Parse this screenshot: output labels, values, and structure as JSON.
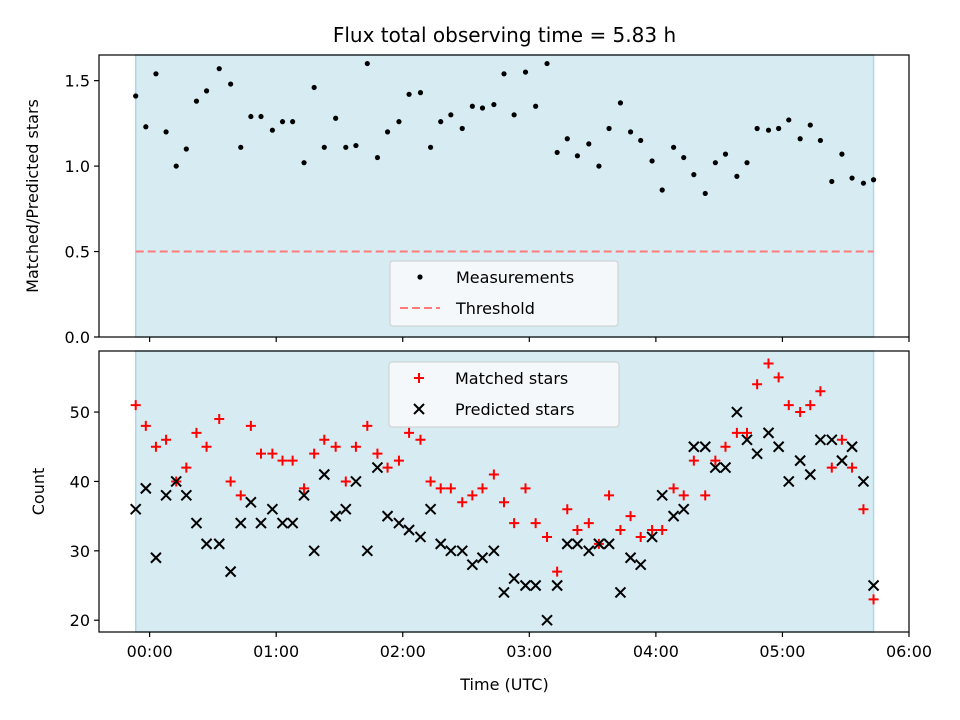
{
  "chart_data": {
    "type": "scatter",
    "title": "Flux total observing time = 5.83 h",
    "xlabel": "Time (UTC)",
    "xlim_hours": [
      -0.4,
      6.0
    ],
    "xticks": [
      {
        "value": 0,
        "label": "00:00"
      },
      {
        "value": 1,
        "label": "01:00"
      },
      {
        "value": 2,
        "label": "02:00"
      },
      {
        "value": 3,
        "label": "03:00"
      },
      {
        "value": 4,
        "label": "04:00"
      },
      {
        "value": 5,
        "label": "05:00"
      },
      {
        "value": 6,
        "label": "06:00"
      }
    ],
    "observing_window_hours": [
      -0.11,
      5.72
    ],
    "panels": [
      {
        "name": "ratio",
        "ylabel": "Matched/Predicted stars",
        "ylim": [
          0,
          1.65
        ],
        "yticks": [
          {
            "value": 0.0,
            "label": "0.0"
          },
          {
            "value": 0.5,
            "label": "0.5"
          },
          {
            "value": 1.0,
            "label": "1.0"
          },
          {
            "value": 1.5,
            "label": "1.5"
          }
        ],
        "threshold": 0.5,
        "legend": {
          "position": "lower-center",
          "entries": [
            {
              "label": "Measurements",
              "marker": "dot",
              "color": "#000000"
            },
            {
              "label": "Threshold",
              "marker": "dashed-line",
              "color": "#ff7b7b"
            }
          ]
        },
        "series": [
          {
            "name": "Measurements",
            "color": "#000000",
            "x": [
              -0.11,
              -0.03,
              0.05,
              0.13,
              0.21,
              0.29,
              0.37,
              0.45,
              0.55,
              0.64,
              0.72,
              0.8,
              0.88,
              0.97,
              1.05,
              1.13,
              1.22,
              1.3,
              1.38,
              1.47,
              1.55,
              1.63,
              1.72,
              1.8,
              1.88,
              1.97,
              2.05,
              2.14,
              2.22,
              2.3,
              2.38,
              2.47,
              2.55,
              2.63,
              2.72,
              2.8,
              2.88,
              2.97,
              3.05,
              3.14,
              3.22,
              3.3,
              3.38,
              3.47,
              3.55,
              3.63,
              3.72,
              3.8,
              3.88,
              3.97,
              4.05,
              4.14,
              4.22,
              4.3,
              4.39,
              4.47,
              4.55,
              4.64,
              4.72,
              4.8,
              4.89,
              4.97,
              5.05,
              5.14,
              5.22,
              5.3,
              5.39,
              5.47,
              5.55,
              5.64,
              5.72
            ],
            "y": [
              1.41,
              1.23,
              1.54,
              1.2,
              1.0,
              1.1,
              1.38,
              1.44,
              1.57,
              1.48,
              1.11,
              1.29,
              1.29,
              1.21,
              1.26,
              1.26,
              1.02,
              1.46,
              1.11,
              1.28,
              1.11,
              1.12,
              1.6,
              1.05,
              1.2,
              1.26,
              1.42,
              1.43,
              1.11,
              1.26,
              1.3,
              1.22,
              1.35,
              1.34,
              1.36,
              1.54,
              1.3,
              1.55,
              1.35,
              1.6,
              1.08,
              1.16,
              1.06,
              1.13,
              1.0,
              1.22,
              1.37,
              1.2,
              1.15,
              1.03,
              0.86,
              1.11,
              1.05,
              0.95,
              0.84,
              1.02,
              1.07,
              0.94,
              1.02,
              1.22,
              1.21,
              1.22,
              1.27,
              1.16,
              1.24,
              1.15,
              0.91,
              1.07,
              0.93,
              0.9,
              0.92
            ]
          }
        ]
      },
      {
        "name": "counts",
        "ylabel": "Count",
        "ylim": [
          18.3,
          58.8
        ],
        "yticks": [
          {
            "value": 20,
            "label": "20"
          },
          {
            "value": 30,
            "label": "30"
          },
          {
            "value": 40,
            "label": "40"
          },
          {
            "value": 50,
            "label": "50"
          }
        ],
        "legend": {
          "position": "upper-center",
          "entries": [
            {
              "label": "Matched stars",
              "marker": "plus",
              "color": "#ff0000"
            },
            {
              "label": "Predicted stars",
              "marker": "cross",
              "color": "#000000"
            }
          ]
        },
        "series": [
          {
            "name": "Matched stars",
            "marker": "plus",
            "color": "#ff0000",
            "x": [
              -0.11,
              -0.03,
              0.05,
              0.13,
              0.21,
              0.29,
              0.37,
              0.45,
              0.55,
              0.64,
              0.72,
              0.8,
              0.88,
              0.97,
              1.05,
              1.13,
              1.22,
              1.3,
              1.38,
              1.47,
              1.55,
              1.63,
              1.72,
              1.8,
              1.88,
              1.97,
              2.05,
              2.14,
              2.22,
              2.3,
              2.38,
              2.47,
              2.55,
              2.63,
              2.72,
              2.8,
              2.88,
              2.97,
              3.05,
              3.14,
              3.22,
              3.3,
              3.38,
              3.47,
              3.55,
              3.63,
              3.72,
              3.8,
              3.88,
              3.97,
              4.05,
              4.14,
              4.22,
              4.3,
              4.39,
              4.47,
              4.55,
              4.64,
              4.72,
              4.8,
              4.89,
              4.97,
              5.05,
              5.14,
              5.22,
              5.3,
              5.39,
              5.47,
              5.55,
              5.64,
              5.72
            ],
            "y": [
              51,
              48,
              45,
              46,
              40,
              42,
              47,
              45,
              49,
              40,
              38,
              48,
              44,
              44,
              43,
              43,
              39,
              44,
              46,
              45,
              40,
              45,
              48,
              44,
              42,
              43,
              47,
              46,
              40,
              39,
              39,
              37,
              38,
              39,
              41,
              37,
              34,
              39,
              34,
              32,
              27,
              36,
              33,
              34,
              31,
              38,
              33,
              35,
              32,
              33,
              33,
              39,
              38,
              43,
              38,
              43,
              45,
              47,
              47,
              54,
              57,
              55,
              51,
              50,
              51,
              53,
              42,
              46,
              42,
              36,
              23
            ]
          },
          {
            "name": "Predicted stars",
            "marker": "cross",
            "color": "#000000",
            "x": [
              -0.11,
              -0.03,
              0.05,
              0.13,
              0.21,
              0.29,
              0.37,
              0.45,
              0.55,
              0.64,
              0.72,
              0.8,
              0.88,
              0.97,
              1.05,
              1.13,
              1.22,
              1.3,
              1.38,
              1.47,
              1.55,
              1.63,
              1.72,
              1.8,
              1.88,
              1.97,
              2.05,
              2.14,
              2.22,
              2.3,
              2.38,
              2.47,
              2.55,
              2.63,
              2.72,
              2.8,
              2.88,
              2.97,
              3.05,
              3.14,
              3.22,
              3.3,
              3.38,
              3.47,
              3.55,
              3.63,
              3.72,
              3.8,
              3.88,
              3.97,
              4.05,
              4.14,
              4.22,
              4.3,
              4.39,
              4.47,
              4.55,
              4.64,
              4.72,
              4.8,
              4.89,
              4.97,
              5.05,
              5.14,
              5.22,
              5.3,
              5.39,
              5.47,
              5.55,
              5.64,
              5.72
            ],
            "y": [
              36,
              39,
              29,
              38,
              40,
              38,
              34,
              31,
              31,
              27,
              34,
              37,
              34,
              36,
              34,
              34,
              38,
              30,
              41,
              35,
              36,
              40,
              30,
              42,
              35,
              34,
              33,
              32,
              36,
              31,
              30,
              30,
              28,
              29,
              30,
              24,
              26,
              25,
              25,
              20,
              25,
              31,
              31,
              30,
              31,
              31,
              24,
              29,
              28,
              32,
              38,
              35,
              36,
              45,
              45,
              42,
              42,
              50,
              46,
              44,
              47,
              45,
              40,
              43,
              41,
              46,
              46,
              43,
              45,
              40,
              25
            ]
          }
        ]
      }
    ]
  }
}
